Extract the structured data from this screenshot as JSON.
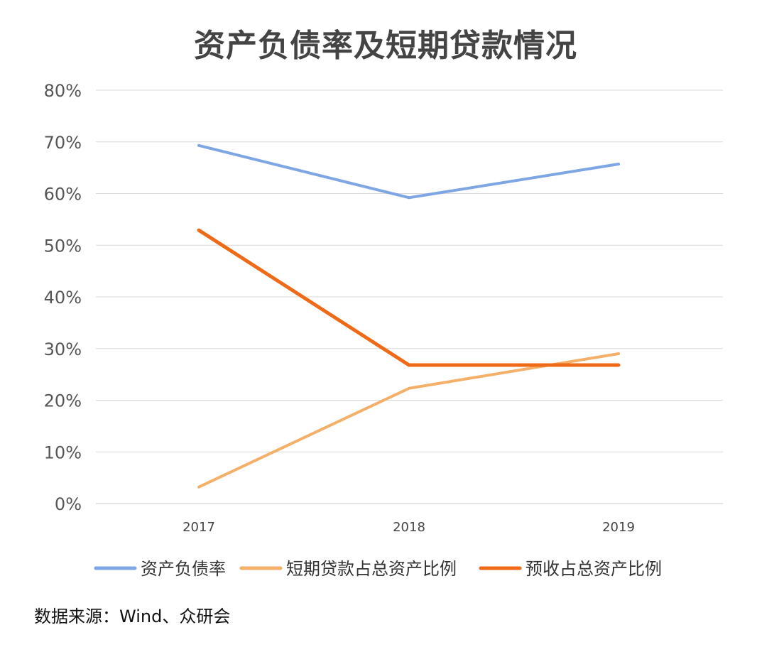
{
  "chart_data": {
    "type": "line",
    "title": "资产负债率及短期贷款情况",
    "xlabel": "",
    "ylabel": "",
    "categories": [
      "2017",
      "2018",
      "2019"
    ],
    "ylim": [
      0,
      80
    ],
    "yticks": [
      "0%",
      "10%",
      "20%",
      "30%",
      "40%",
      "50%",
      "60%",
      "70%",
      "80%"
    ],
    "grid": true,
    "legend_position": "bottom",
    "series": [
      {
        "name": "资产负债率",
        "color": "#7FA6E4",
        "values": [
          69.3,
          59.2,
          65.7
        ]
      },
      {
        "name": "短期贷款占总资产比例",
        "color": "#F4AF68",
        "values": [
          3.2,
          22.3,
          29.0
        ]
      },
      {
        "name": "预收占总资产比例",
        "color": "#EE6A16",
        "values": [
          52.9,
          26.8,
          26.8
        ]
      }
    ]
  },
  "source": "数据来源：Wind、众研会"
}
